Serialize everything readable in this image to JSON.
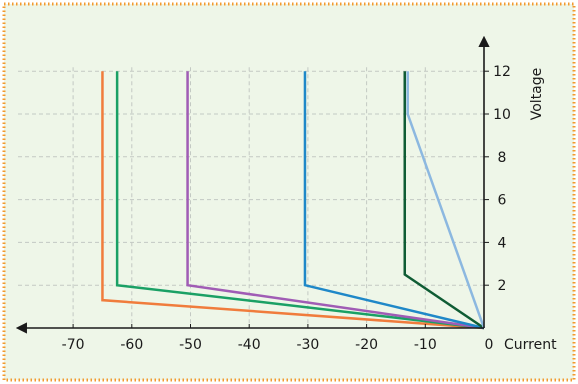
{
  "colors": {
    "background": "#eef6e8",
    "border": "#f39a2e",
    "grid": "#c3c9c3",
    "axis": "#1a1a1a"
  },
  "chart_data": {
    "type": "line",
    "title": "",
    "xlabel": "Current",
    "ylabel": "Voltage",
    "xlim": [
      -75,
      0
    ],
    "ylim": [
      0,
      12
    ],
    "grid": true,
    "x_ticks": [
      -70,
      -60,
      -50,
      -40,
      -30,
      -20,
      -10,
      0
    ],
    "x_tick_labels": [
      "-70",
      "-60",
      "-50",
      "-40",
      "-30",
      "-20",
      "-10",
      "0"
    ],
    "y_ticks": [
      2,
      4,
      6,
      8,
      10,
      12
    ],
    "y_tick_labels": [
      "2",
      "4",
      "6",
      "8",
      "10",
      "12"
    ],
    "series": [
      {
        "color": "#f07c3c",
        "points": [
          [
            -65,
            12
          ],
          [
            -65,
            1.3
          ],
          [
            0,
            0
          ]
        ]
      },
      {
        "color": "#1aa065",
        "points": [
          [
            -62.5,
            12
          ],
          [
            -62.5,
            2
          ],
          [
            0,
            0
          ]
        ]
      },
      {
        "color": "#a05cb5",
        "points": [
          [
            -50.5,
            12
          ],
          [
            -50.5,
            2
          ],
          [
            0,
            0
          ]
        ]
      },
      {
        "color": "#1f88c8",
        "points": [
          [
            -30.5,
            12
          ],
          [
            -30.5,
            2
          ],
          [
            0,
            0
          ]
        ]
      },
      {
        "color": "#0f5c34",
        "points": [
          [
            -13.5,
            12
          ],
          [
            -13.5,
            2.5
          ],
          [
            0,
            0
          ]
        ]
      },
      {
        "color": "#8cb8e0",
        "points": [
          [
            -13,
            12
          ],
          [
            -13,
            10
          ],
          [
            0,
            0
          ]
        ]
      }
    ]
  }
}
